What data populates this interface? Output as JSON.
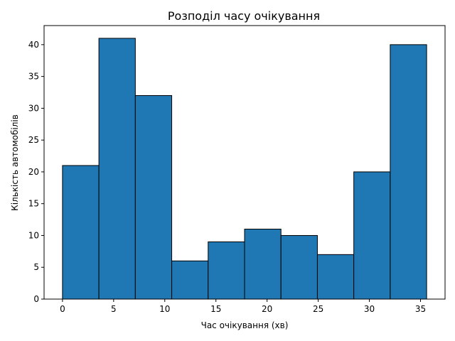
{
  "chart_data": {
    "type": "bar",
    "title": "Розподіл часу очікування",
    "xlabel": "Час очікування (хв)",
    "ylabel": "Кількість автомобілів",
    "bins": [
      {
        "start": 0.0,
        "end": 3.56,
        "count": 21
      },
      {
        "start": 3.56,
        "end": 7.12,
        "count": 41
      },
      {
        "start": 7.12,
        "end": 10.68,
        "count": 32
      },
      {
        "start": 10.68,
        "end": 14.24,
        "count": 6
      },
      {
        "start": 14.24,
        "end": 17.8,
        "count": 9
      },
      {
        "start": 17.8,
        "end": 21.36,
        "count": 11
      },
      {
        "start": 21.36,
        "end": 24.92,
        "count": 10
      },
      {
        "start": 24.92,
        "end": 28.48,
        "count": 7
      },
      {
        "start": 28.48,
        "end": 32.04,
        "count": 20
      },
      {
        "start": 32.04,
        "end": 35.6,
        "count": 40
      }
    ],
    "xlim": [
      -1.8,
      37.4
    ],
    "ylim": [
      0,
      43
    ],
    "xticks": [
      0,
      5,
      10,
      15,
      20,
      25,
      30,
      35
    ],
    "yticks": [
      0,
      5,
      10,
      15,
      20,
      25,
      30,
      35,
      40
    ],
    "bar_color": "#1f77b4",
    "edge_color": "#000000",
    "grid": false,
    "legend": "none"
  }
}
